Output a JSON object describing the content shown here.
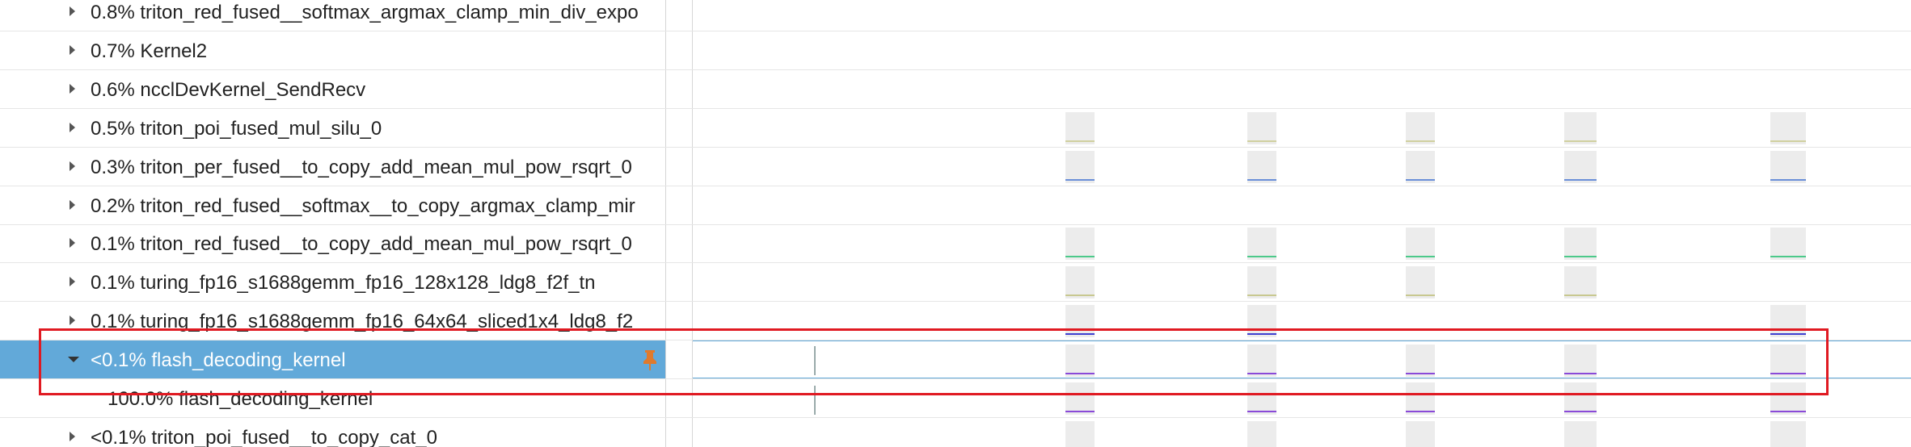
{
  "rows": [
    {
      "label": "0.8% triton_red_fused__softmax_argmax_clamp_min_div_expo"
    },
    {
      "label": "0.7% Kernel2"
    },
    {
      "label": "0.6% ncclDevKernel_SendRecv"
    },
    {
      "label": "0.5% triton_poi_fused_mul_silu_0"
    },
    {
      "label": "0.3% triton_per_fused__to_copy_add_mean_mul_pow_rsqrt_0"
    },
    {
      "label": "0.2% triton_red_fused__softmax__to_copy_argmax_clamp_mir"
    },
    {
      "label": "0.1% triton_red_fused__to_copy_add_mean_mul_pow_rsqrt_0"
    },
    {
      "label": "0.1% turing_fp16_s1688gemm_fp16_128x128_ldg8_f2f_tn"
    },
    {
      "label": "0.1% turing_fp16_s1688gemm_fp16_64x64_sliced1x4_ldg8_f2"
    },
    {
      "label": "<0.1% flash_decoding_kernel"
    },
    {
      "label": "100.0% flash_decoding_kernel"
    },
    {
      "label": "<0.1% triton_poi_fused__to_copy_cat_0"
    }
  ]
}
